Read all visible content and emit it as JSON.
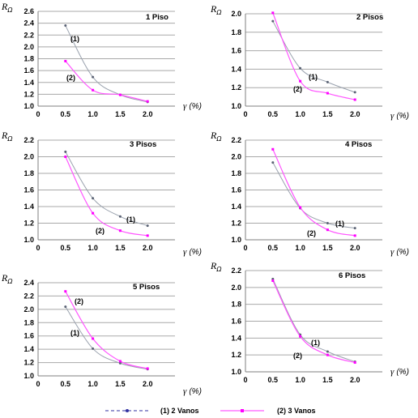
{
  "chart_data": [
    {
      "type": "line",
      "title": "1 Piso",
      "ylabel": "RΩ",
      "xlabel": "γ (%)",
      "x": [
        0.5,
        1.0,
        1.5,
        2.0
      ],
      "xticks": [
        "0",
        "0.5",
        "1.0",
        "1.5",
        "2.0"
      ],
      "xlim": [
        0,
        2.5
      ],
      "ylim": [
        1.0,
        2.6
      ],
      "yticks": [
        "1.0",
        "1.2",
        "1.4",
        "1.6",
        "1.8",
        "2.0",
        "2.2",
        "2.4",
        "2.6"
      ],
      "series": [
        {
          "name": "(1) 2 Vanos",
          "label": "(1)",
          "values": [
            2.36,
            1.49,
            1.19,
            1.07
          ]
        },
        {
          "name": "(2) 3 Vanos",
          "label": "(2)",
          "values": [
            1.76,
            1.27,
            1.19,
            1.08
          ]
        }
      ]
    },
    {
      "type": "line",
      "title": "2 Pisos",
      "ylabel": "RΩ",
      "xlabel": "γ (%)",
      "x": [
        0.5,
        1.0,
        1.5,
        2.0
      ],
      "xticks": [
        "0",
        "0.5",
        "1.0",
        "1.5",
        "2.0"
      ],
      "xlim": [
        0,
        2.5
      ],
      "ylim": [
        1.0,
        2.0
      ],
      "yticks": [
        "1.0",
        "1.2",
        "1.4",
        "1.6",
        "1.8",
        "2.0"
      ],
      "series": [
        {
          "name": "(1) 2 Vanos",
          "label": "(1)",
          "values": [
            1.92,
            1.41,
            1.26,
            1.15
          ]
        },
        {
          "name": "(2) 3 Vanos",
          "label": "(2)",
          "values": [
            2.01,
            1.27,
            1.14,
            1.07
          ]
        }
      ]
    },
    {
      "type": "line",
      "title": "3 Pisos",
      "ylabel": "RΩ",
      "xlabel": "γ (%)",
      "x": [
        0.5,
        1.0,
        1.5,
        2.0
      ],
      "xticks": [
        "0",
        "0.5",
        "1.0",
        "1.5",
        "2.0"
      ],
      "xlim": [
        0,
        2.5
      ],
      "ylim": [
        1.0,
        2.2
      ],
      "yticks": [
        "1.0",
        "1.2",
        "1.4",
        "1.6",
        "1.8",
        "2.0",
        "2.2"
      ],
      "series": [
        {
          "name": "(1) 2 Vanos",
          "label": "(1)",
          "values": [
            2.06,
            1.5,
            1.28,
            1.17
          ]
        },
        {
          "name": "(2) 3 Vanos",
          "label": "(2)",
          "values": [
            2.0,
            1.32,
            1.11,
            1.05
          ]
        }
      ]
    },
    {
      "type": "line",
      "title": "4 Pisos",
      "ylabel": "RΩ",
      "xlabel": "γ (%)",
      "x": [
        0.5,
        1.0,
        1.5,
        2.0
      ],
      "xticks": [
        "0",
        "0.5",
        "1.0",
        "1.5",
        "2.0"
      ],
      "xlim": [
        0,
        2.5
      ],
      "ylim": [
        1.0,
        2.2
      ],
      "yticks": [
        "1.0",
        "1.2",
        "1.4",
        "1.6",
        "1.8",
        "2.0",
        "2.2"
      ],
      "series": [
        {
          "name": "(1) 2 Vanos",
          "label": "(1)",
          "values": [
            1.93,
            1.38,
            1.2,
            1.14
          ]
        },
        {
          "name": "(2) 3 Vanos",
          "label": "(2)",
          "values": [
            2.09,
            1.39,
            1.12,
            1.05
          ]
        }
      ]
    },
    {
      "type": "line",
      "title": "5 Pisos",
      "ylabel": "RΩ",
      "xlabel": "γ (%)",
      "x": [
        0.5,
        1.0,
        1.5,
        2.0
      ],
      "xticks": [
        "0",
        "0.5",
        "1.0",
        "1.5",
        "2.0"
      ],
      "xlim": [
        0,
        2.5
      ],
      "ylim": [
        1.0,
        2.4
      ],
      "yticks": [
        "1.0",
        "1.2",
        "1.4",
        "1.6",
        "1.8",
        "2.0",
        "2.2",
        "2.4"
      ],
      "series": [
        {
          "name": "(1) 2 Vanos",
          "label": "(1)",
          "values": [
            2.04,
            1.41,
            1.19,
            1.1
          ]
        },
        {
          "name": "(2) 3 Vanos",
          "label": "(2)",
          "values": [
            2.27,
            1.56,
            1.22,
            1.11
          ]
        }
      ]
    },
    {
      "type": "line",
      "title": "6 Pisos",
      "ylabel": "RΩ",
      "xlabel": "γ (%)",
      "x": [
        0.5,
        1.0,
        1.5,
        2.0
      ],
      "xticks": [
        "0",
        "0.5",
        "1.0",
        "1.5",
        "2.0"
      ],
      "xlim": [
        0,
        2.5
      ],
      "ylim": [
        1.0,
        2.2
      ],
      "yticks": [
        "1.0",
        "1.2",
        "1.4",
        "1.6",
        "1.8",
        "2.0",
        "2.2"
      ],
      "series": [
        {
          "name": "(1) 2 Vanos",
          "label": "(1)",
          "values": [
            2.1,
            1.44,
            1.24,
            1.12
          ]
        },
        {
          "name": "(2) 3 Vanos",
          "label": "(2)",
          "values": [
            2.08,
            1.42,
            1.2,
            1.11
          ]
        }
      ]
    }
  ],
  "legend": {
    "placement": "bottom",
    "items": [
      {
        "label": "(1) 2 Vanos",
        "color": "#8c96a8",
        "line_style": "dashed",
        "marker_color": "#3030a0"
      },
      {
        "label": "(2)  3 Vanos",
        "color": "#ff33ff",
        "line_style": "solid",
        "marker_color": "#ff00ff"
      }
    ]
  },
  "colors": {
    "series1": "#9aa2ae",
    "series1_marker": "#5a6274",
    "series2": "#ff55ff",
    "series2_marker": "#ff00ff",
    "grid": "#a8a8a8",
    "axis": "#7f7f7f"
  }
}
